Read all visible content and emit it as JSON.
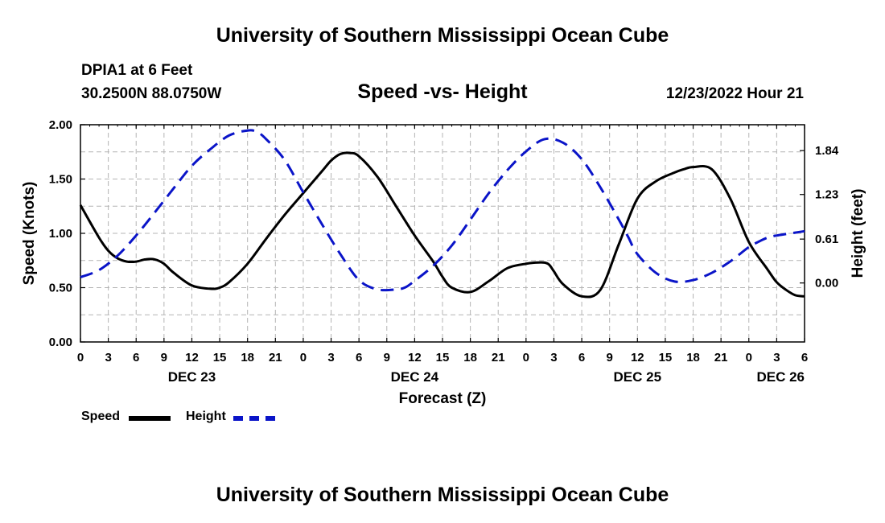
{
  "header": {
    "title": "University of Southern Mississippi Ocean Cube",
    "station": "DPIA1 at 6 Feet",
    "coords": "30.2500N  88.0750W",
    "subtitle": "Speed -vs- Height",
    "timestamp": "12/23/2022 Hour 21"
  },
  "footer": {
    "title": "University of Southern Mississippi Ocean Cube"
  },
  "legend": {
    "speed_label": "Speed",
    "height_label": "Height"
  },
  "colors": {
    "speed": "#000000",
    "height": "#0a14c8",
    "grid": "#b4b4b4"
  },
  "chart_data": {
    "type": "line",
    "title": "Speed -vs- Height",
    "xlabel": "Forecast (Z)",
    "ylabel_left": "Speed (Knots)",
    "ylabel_right": "Height (feet)",
    "x_unit": "hours from 12/23/2022 00Z",
    "xlim": [
      0,
      78
    ],
    "ylim_left": [
      0,
      2.0
    ],
    "yticks_left": [
      "0.00",
      "0.50",
      "1.00",
      "1.50",
      "2.00"
    ],
    "ylim_right": [
      -0.82,
      2.2
    ],
    "yticks_right": [
      "0.00",
      "0.61",
      "1.23",
      "1.84"
    ],
    "x_tick_labels": [
      "0",
      "3",
      "6",
      "9",
      "12",
      "15",
      "18",
      "21",
      "0",
      "3",
      "6",
      "9",
      "12",
      "15",
      "18",
      "21",
      "0",
      "3",
      "6",
      "9",
      "12",
      "15",
      "18",
      "21",
      "0",
      "3",
      "6"
    ],
    "date_labels": [
      {
        "label": "DEC 23",
        "hour": 12
      },
      {
        "label": "DEC 24",
        "hour": 36
      },
      {
        "label": "DEC 25",
        "hour": 60
      },
      {
        "label": "DEC 26",
        "hour": 78
      }
    ],
    "series": [
      {
        "name": "Speed",
        "axis": "left",
        "style": "solid",
        "x": [
          0,
          2,
          3,
          4,
          5,
          6,
          7,
          8,
          9,
          10,
          12,
          14,
          15,
          16,
          18,
          20,
          22,
          24,
          26,
          27,
          28,
          29,
          30,
          32,
          34,
          36,
          38,
          39,
          40,
          42,
          44,
          46,
          48,
          49,
          50,
          50.5,
          51,
          52,
          54,
          56,
          58,
          60,
          62,
          64,
          65,
          66,
          68,
          70,
          72,
          74,
          75,
          76,
          77,
          78
        ],
        "values": [
          1.26,
          0.96,
          0.84,
          0.77,
          0.74,
          0.74,
          0.76,
          0.76,
          0.72,
          0.64,
          0.52,
          0.49,
          0.5,
          0.55,
          0.72,
          0.95,
          1.17,
          1.37,
          1.57,
          1.67,
          1.73,
          1.74,
          1.71,
          1.52,
          1.25,
          0.98,
          0.74,
          0.6,
          0.5,
          0.46,
          0.56,
          0.68,
          0.72,
          0.73,
          0.73,
          0.71,
          0.65,
          0.53,
          0.42,
          0.48,
          0.9,
          1.32,
          1.48,
          1.56,
          1.59,
          1.61,
          1.59,
          1.32,
          0.92,
          0.67,
          0.55,
          0.48,
          0.43,
          0.42
        ]
      },
      {
        "name": "Height",
        "axis": "right",
        "style": "dashed",
        "x": [
          0,
          2,
          4,
          6,
          8,
          10,
          12,
          14,
          16,
          18,
          19,
          20,
          22,
          24,
          26,
          28,
          30,
          32,
          34,
          35,
          36,
          38,
          40,
          42,
          44,
          46,
          48,
          50,
          52,
          54,
          56,
          58,
          59,
          60,
          62,
          64,
          66,
          68,
          70,
          72,
          73,
          74,
          75,
          76,
          77,
          78
        ],
        "values": [
          0.08,
          0.18,
          0.38,
          0.66,
          0.98,
          1.31,
          1.63,
          1.86,
          2.05,
          2.12,
          2.1,
          2.0,
          1.71,
          1.26,
          0.82,
          0.4,
          0.04,
          -0.09,
          -0.09,
          -0.06,
          0.03,
          0.24,
          0.52,
          0.88,
          1.25,
          1.57,
          1.83,
          2.0,
          1.95,
          1.72,
          1.33,
          0.88,
          0.64,
          0.4,
          0.14,
          0.02,
          0.04,
          0.14,
          0.3,
          0.5,
          0.57,
          0.63,
          0.66,
          0.68,
          0.7,
          0.72
        ]
      }
    ]
  }
}
